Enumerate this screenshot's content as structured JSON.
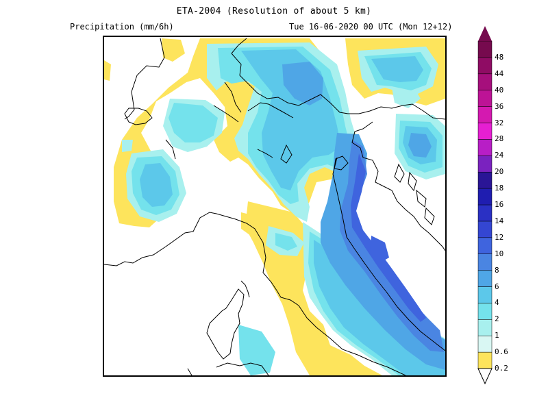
{
  "header": {
    "title": "ETA-2004 (Resolution of about 5 km)",
    "left_label": "Precipitation (mm/6h)",
    "right_label": "Tue 16-06-2020 00 UTC (Mon 12+12)"
  },
  "legend": {
    "levels": [
      {
        "label": "0.2",
        "color": "#fde45c"
      },
      {
        "label": "0.6",
        "color": "#d9f7f3"
      },
      {
        "label": "1",
        "color": "#a8f0ee"
      },
      {
        "label": "2",
        "color": "#74e2ec"
      },
      {
        "label": "4",
        "color": "#5cc8ea"
      },
      {
        "label": "6",
        "color": "#4fa6e6"
      },
      {
        "label": "8",
        "color": "#4a85e2"
      },
      {
        "label": "10",
        "color": "#3f64de"
      },
      {
        "label": "12",
        "color": "#3446d2"
      },
      {
        "label": "14",
        "color": "#2a30c4"
      },
      {
        "label": "16",
        "color": "#1f1db0"
      },
      {
        "label": "18",
        "color": "#2a1596"
      },
      {
        "label": "20",
        "color": "#7a22bf"
      },
      {
        "label": "24",
        "color": "#b81ec6"
      },
      {
        "label": "28",
        "color": "#e61fd2"
      },
      {
        "label": "32",
        "color": "#d419b0"
      },
      {
        "label": "36",
        "color": "#bd1396"
      },
      {
        "label": "40",
        "color": "#a60f7c"
      },
      {
        "label": "44",
        "color": "#8f0c64"
      },
      {
        "label": "48",
        "color": "#760a4e"
      }
    ]
  }
}
